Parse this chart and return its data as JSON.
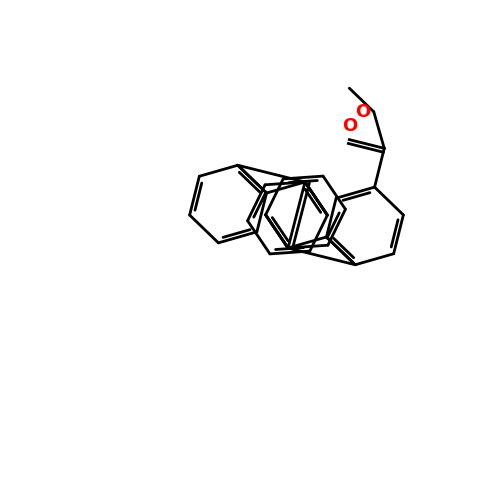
{
  "bg_color": "#ffffff",
  "bond_color": "#000000",
  "O_color": "#ff0000",
  "lw": 2.0,
  "lw_double_inner": 2.0,
  "figsize": [
    5.0,
    5.0
  ],
  "dpi": 100
}
